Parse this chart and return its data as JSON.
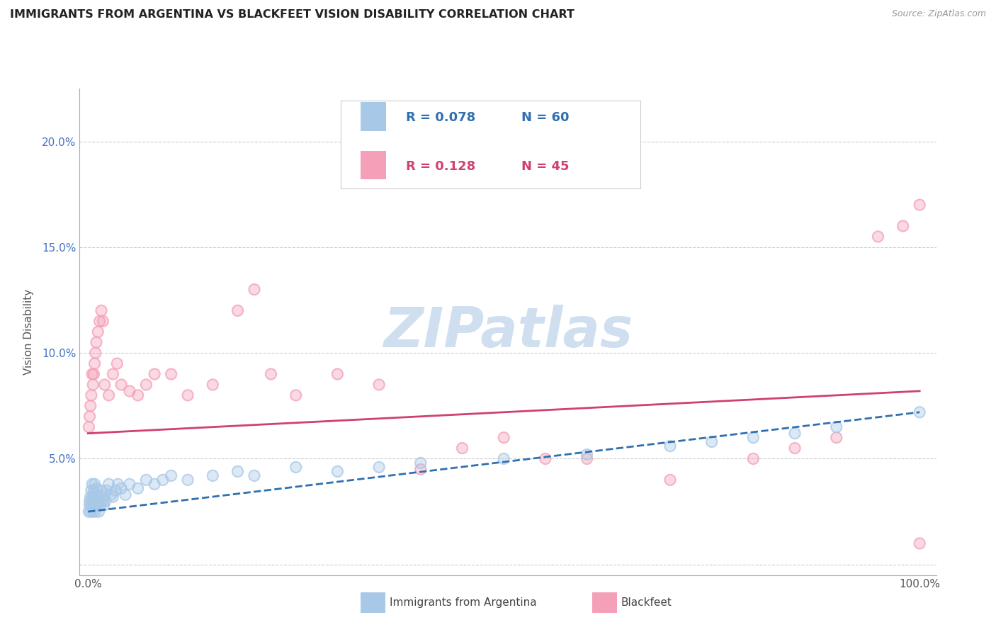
{
  "title": "IMMIGRANTS FROM ARGENTINA VS BLACKFEET VISION DISABILITY CORRELATION CHART",
  "source": "Source: ZipAtlas.com",
  "ylabel": "Vision Disability",
  "watermark": "ZIPatlas",
  "legend_blue_r": "R = 0.078",
  "legend_blue_n": "N = 60",
  "legend_pink_r": "R = 0.128",
  "legend_pink_n": "N = 45",
  "legend_label_blue": "Immigrants from Argentina",
  "legend_label_pink": "Blackfeet",
  "xlim": [
    -0.01,
    1.02
  ],
  "ylim": [
    -0.005,
    0.225
  ],
  "yticks": [
    0.0,
    0.05,
    0.1,
    0.15,
    0.2
  ],
  "yticklabels": [
    "",
    "5.0%",
    "10.0%",
    "15.0%",
    "20.0%"
  ],
  "blue_scatter_x": [
    0.001,
    0.002,
    0.002,
    0.003,
    0.003,
    0.004,
    0.004,
    0.005,
    0.005,
    0.006,
    0.006,
    0.007,
    0.007,
    0.008,
    0.008,
    0.009,
    0.009,
    0.01,
    0.01,
    0.011,
    0.012,
    0.013,
    0.014,
    0.015,
    0.016,
    0.017,
    0.018,
    0.019,
    0.02,
    0.021,
    0.022,
    0.025,
    0.028,
    0.03,
    0.033,
    0.036,
    0.04,
    0.045,
    0.05,
    0.06,
    0.07,
    0.08,
    0.09,
    0.1,
    0.12,
    0.15,
    0.18,
    0.2,
    0.25,
    0.3,
    0.35,
    0.4,
    0.5,
    0.6,
    0.7,
    0.75,
    0.8,
    0.85,
    0.9,
    1.0
  ],
  "blue_scatter_y": [
    0.025,
    0.03,
    0.028,
    0.025,
    0.032,
    0.028,
    0.035,
    0.03,
    0.038,
    0.025,
    0.032,
    0.028,
    0.035,
    0.03,
    0.038,
    0.025,
    0.033,
    0.028,
    0.036,
    0.03,
    0.032,
    0.025,
    0.03,
    0.028,
    0.035,
    0.032,
    0.03,
    0.028,
    0.033,
    0.03,
    0.035,
    0.038,
    0.033,
    0.032,
    0.035,
    0.038,
    0.036,
    0.033,
    0.038,
    0.036,
    0.04,
    0.038,
    0.04,
    0.042,
    0.04,
    0.042,
    0.044,
    0.042,
    0.046,
    0.044,
    0.046,
    0.048,
    0.05,
    0.052,
    0.056,
    0.058,
    0.06,
    0.062,
    0.065,
    0.072
  ],
  "pink_scatter_x": [
    0.001,
    0.002,
    0.003,
    0.004,
    0.005,
    0.006,
    0.007,
    0.008,
    0.009,
    0.01,
    0.012,
    0.014,
    0.016,
    0.018,
    0.02,
    0.025,
    0.03,
    0.035,
    0.04,
    0.05,
    0.06,
    0.07,
    0.08,
    0.1,
    0.12,
    0.15,
    0.18,
    0.2,
    0.22,
    0.25,
    0.3,
    0.35,
    0.4,
    0.45,
    0.5,
    0.55,
    0.6,
    0.7,
    0.8,
    0.85,
    0.9,
    0.95,
    0.98,
    1.0,
    1.0
  ],
  "pink_scatter_y": [
    0.065,
    0.07,
    0.075,
    0.08,
    0.09,
    0.085,
    0.09,
    0.095,
    0.1,
    0.105,
    0.11,
    0.115,
    0.12,
    0.115,
    0.085,
    0.08,
    0.09,
    0.095,
    0.085,
    0.082,
    0.08,
    0.085,
    0.09,
    0.09,
    0.08,
    0.085,
    0.12,
    0.13,
    0.09,
    0.08,
    0.09,
    0.085,
    0.045,
    0.055,
    0.06,
    0.05,
    0.05,
    0.04,
    0.05,
    0.055,
    0.06,
    0.155,
    0.16,
    0.17,
    0.01
  ],
  "blue_line_x": [
    0.0,
    1.0
  ],
  "blue_line_y": [
    0.025,
    0.072
  ],
  "pink_line_x": [
    0.0,
    1.0
  ],
  "pink_line_y": [
    0.062,
    0.082
  ],
  "blue_color": "#a8c8e8",
  "pink_color": "#f4a0b8",
  "blue_line_color": "#3070b0",
  "pink_line_color": "#d04070",
  "grid_color": "#cccccc",
  "watermark_color": "#d0dff0",
  "title_color": "#222222",
  "background_color": "#ffffff",
  "tick_color": "#4472c4"
}
